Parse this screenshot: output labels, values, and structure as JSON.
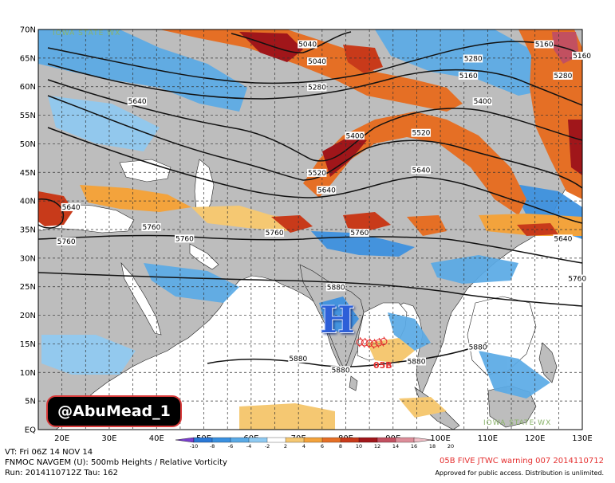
{
  "map": {
    "lat_labels": [
      "70N",
      "65N",
      "60N",
      "55N",
      "50N",
      "45N",
      "40N",
      "35N",
      "30N",
      "25N",
      "20N",
      "15N",
      "10N",
      "5N",
      "EQ"
    ],
    "lon_labels": [
      "20E",
      "30E",
      "40E",
      "50E",
      "60E",
      "70E",
      "80E",
      "90E",
      "100E",
      "110E",
      "120E",
      "130E"
    ],
    "contour_labels": [
      {
        "text": "5040",
        "lon": 70,
        "lat": 67
      },
      {
        "text": "5040",
        "lon": 72,
        "lat": 64
      },
      {
        "text": "5160",
        "lon": 104,
        "lat": 61.5
      },
      {
        "text": "5280",
        "lon": 72,
        "lat": 59.5
      },
      {
        "text": "5160",
        "lon": 120,
        "lat": 67
      },
      {
        "text": "5160",
        "lon": 128,
        "lat": 65
      },
      {
        "text": "5280",
        "lon": 105,
        "lat": 64.5
      },
      {
        "text": "5280",
        "lon": 124,
        "lat": 61.5
      },
      {
        "text": "5400",
        "lon": 107,
        "lat": 57
      },
      {
        "text": "5400",
        "lon": 80,
        "lat": 51
      },
      {
        "text": "5520",
        "lon": 94,
        "lat": 51.5
      },
      {
        "text": "5520",
        "lon": 72,
        "lat": 44.5
      },
      {
        "text": "5640",
        "lon": 94,
        "lat": 45
      },
      {
        "text": "5640",
        "lon": 74,
        "lat": 41.5
      },
      {
        "text": "5640",
        "lon": 20,
        "lat": 38.5
      },
      {
        "text": "5640",
        "lon": 34,
        "lat": 57
      },
      {
        "text": "5640",
        "lon": 124,
        "lat": 33
      },
      {
        "text": "5760",
        "lon": 19,
        "lat": 32.5
      },
      {
        "text": "5760",
        "lon": 37,
        "lat": 35
      },
      {
        "text": "5760",
        "lon": 44,
        "lat": 33
      },
      {
        "text": "5760",
        "lon": 63,
        "lat": 34
      },
      {
        "text": "5760",
        "lon": 81,
        "lat": 34
      },
      {
        "text": "5760",
        "lon": 127,
        "lat": 26
      },
      {
        "text": "5880",
        "lon": 76,
        "lat": 24.5
      },
      {
        "text": "5880",
        "lon": 68,
        "lat": 12
      },
      {
        "text": "5880",
        "lon": 77,
        "lat": 10
      },
      {
        "text": "5880",
        "lon": 93,
        "lat": 11.5
      },
      {
        "text": "5880",
        "lon": 106,
        "lat": 14
      }
    ],
    "high_marker": "H",
    "storm_label": "05B",
    "track_points": [
      {
        "lon": 83,
        "lat": 15.3
      },
      {
        "lon": 84,
        "lat": 15.2
      },
      {
        "lon": 85,
        "lat": 15.1
      },
      {
        "lon": 86,
        "lat": 15.0
      },
      {
        "lon": 87,
        "lat": 15.2
      },
      {
        "lon": 88,
        "lat": 15.4
      }
    ]
  },
  "colorbar": {
    "values": [
      "-10",
      "-8",
      "-6",
      "-4",
      "-2",
      "2",
      "4",
      "6",
      "8",
      "10",
      "12",
      "14",
      "16",
      "18",
      "20"
    ],
    "colors": [
      "#7b3fd0",
      "#2a78d6",
      "#3a90e0",
      "#5aaae6",
      "#8fcaf2",
      "#ffffff",
      "#f5c872",
      "#f3a33c",
      "#e56f25",
      "#c83a1a",
      "#a0161a",
      "#c25060",
      "#dd8e9a",
      "#f0bfc7"
    ]
  },
  "watermarks": {
    "top_left": "IOWA STATE WX",
    "bottom_right": "IOWA STATE WX"
  },
  "badge": {
    "text": "@AbuMead_1"
  },
  "footer": {
    "line1": "VT: Fri 06Z 14 NOV 14",
    "line2": "FNMOC NAVGEM (U): 500mb Heights / Relative Vorticity",
    "line3": "Run: 2014110712Z Tau: 162",
    "warning": "05B FIVE JTWC warning 007 2014110712",
    "approved": "Approved for public access. Distribution is unlimited."
  },
  "colors": {
    "land": "#bdbdbd",
    "ocean": "#ffffff",
    "grid": "#333333",
    "contour": "#111111",
    "coast": "#202020",
    "storm": "#e53030"
  }
}
